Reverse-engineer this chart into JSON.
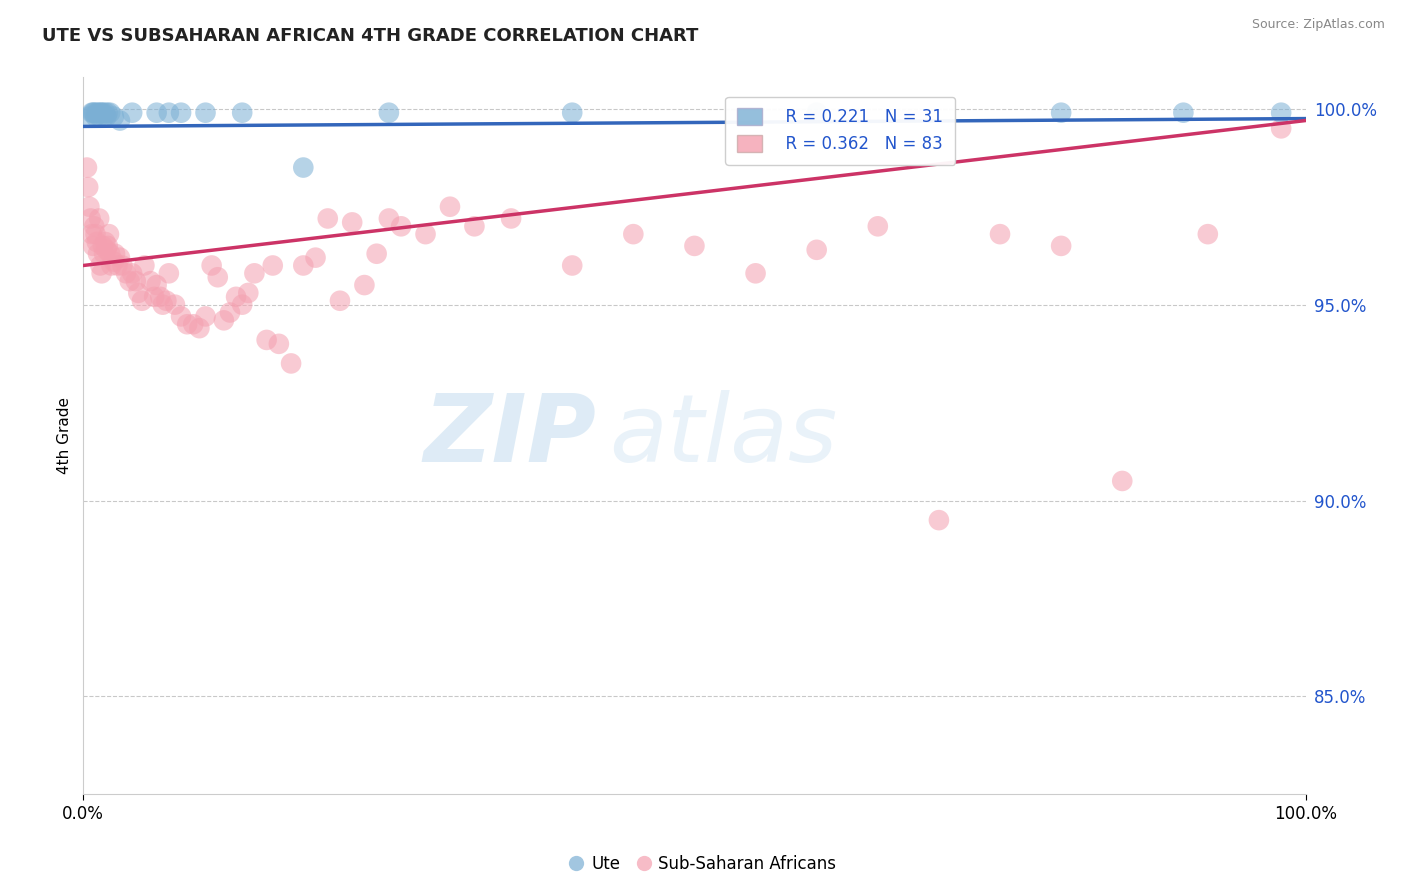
{
  "title": "UTE VS SUBSAHARAN AFRICAN 4TH GRADE CORRELATION CHART",
  "source": "Source: ZipAtlas.com",
  "ylabel": "4th Grade",
  "xlim": [
    0.0,
    1.0
  ],
  "ylim": [
    0.825,
    1.008
  ],
  "yticks": [
    0.85,
    0.9,
    0.95,
    1.0
  ],
  "ytick_labels": [
    "85.0%",
    "90.0%",
    "95.0%",
    "100.0%"
  ],
  "xticks": [
    0.0,
    1.0
  ],
  "xtick_labels": [
    "0.0%",
    "100.0%"
  ],
  "legend_blue_r": "R = 0.221",
  "legend_blue_n": "N = 31",
  "legend_pink_r": "R = 0.362",
  "legend_pink_n": "N = 83",
  "legend_blue_label": "Ute",
  "legend_pink_label": "Sub-Saharan Africans",
  "blue_color": "#7BAFD4",
  "pink_color": "#F4A0B0",
  "blue_line_color": "#3366BB",
  "pink_line_color": "#CC3366",
  "legend_r_color": "#2255CC",
  "watermark_zip": "ZIP",
  "watermark_atlas": "atlas",
  "blue_scatter_x": [
    0.005,
    0.007,
    0.008,
    0.009,
    0.01,
    0.011,
    0.012,
    0.013,
    0.014,
    0.015,
    0.016,
    0.017,
    0.018,
    0.019,
    0.02,
    0.022,
    0.025,
    0.03,
    0.04,
    0.06,
    0.07,
    0.08,
    0.1,
    0.13,
    0.18,
    0.25,
    0.4,
    0.6,
    0.8,
    0.9,
    0.98
  ],
  "blue_scatter_y": [
    0.998,
    0.999,
    0.999,
    0.999,
    0.998,
    0.999,
    0.999,
    0.998,
    0.999,
    0.999,
    0.999,
    0.998,
    0.999,
    0.998,
    0.999,
    0.999,
    0.998,
    0.997,
    0.999,
    0.999,
    0.999,
    0.999,
    0.999,
    0.999,
    0.985,
    0.999,
    0.999,
    0.999,
    0.999,
    0.999,
    0.999
  ],
  "pink_scatter_x": [
    0.003,
    0.004,
    0.005,
    0.006,
    0.007,
    0.008,
    0.009,
    0.01,
    0.011,
    0.012,
    0.013,
    0.014,
    0.015,
    0.016,
    0.017,
    0.018,
    0.019,
    0.02,
    0.021,
    0.022,
    0.023,
    0.025,
    0.026,
    0.028,
    0.03,
    0.032,
    0.035,
    0.038,
    0.04,
    0.043,
    0.045,
    0.048,
    0.05,
    0.055,
    0.058,
    0.06,
    0.063,
    0.065,
    0.068,
    0.07,
    0.075,
    0.08,
    0.085,
    0.09,
    0.095,
    0.1,
    0.105,
    0.11,
    0.115,
    0.12,
    0.125,
    0.13,
    0.135,
    0.14,
    0.15,
    0.155,
    0.16,
    0.17,
    0.18,
    0.19,
    0.2,
    0.21,
    0.22,
    0.23,
    0.24,
    0.25,
    0.26,
    0.28,
    0.3,
    0.32,
    0.35,
    0.4,
    0.45,
    0.5,
    0.55,
    0.6,
    0.65,
    0.7,
    0.75,
    0.8,
    0.85,
    0.92,
    0.98
  ],
  "pink_scatter_y": [
    0.985,
    0.98,
    0.975,
    0.972,
    0.968,
    0.965,
    0.97,
    0.968,
    0.966,
    0.963,
    0.972,
    0.96,
    0.958,
    0.965,
    0.963,
    0.966,
    0.964,
    0.965,
    0.968,
    0.963,
    0.96,
    0.961,
    0.963,
    0.96,
    0.962,
    0.96,
    0.958,
    0.956,
    0.958,
    0.956,
    0.953,
    0.951,
    0.96,
    0.956,
    0.952,
    0.955,
    0.952,
    0.95,
    0.951,
    0.958,
    0.95,
    0.947,
    0.945,
    0.945,
    0.944,
    0.947,
    0.96,
    0.957,
    0.946,
    0.948,
    0.952,
    0.95,
    0.953,
    0.958,
    0.941,
    0.96,
    0.94,
    0.935,
    0.96,
    0.962,
    0.972,
    0.951,
    0.971,
    0.955,
    0.963,
    0.972,
    0.97,
    0.968,
    0.975,
    0.97,
    0.972,
    0.96,
    0.968,
    0.965,
    0.958,
    0.964,
    0.97,
    0.895,
    0.968,
    0.965,
    0.905,
    0.968,
    0.995
  ],
  "blue_line_x0": 0.0,
  "blue_line_y0": 0.9955,
  "blue_line_x1": 1.0,
  "blue_line_y1": 0.9975,
  "pink_line_x0": 0.0,
  "pink_line_y0": 0.96,
  "pink_line_x1": 1.0,
  "pink_line_y1": 0.997
}
